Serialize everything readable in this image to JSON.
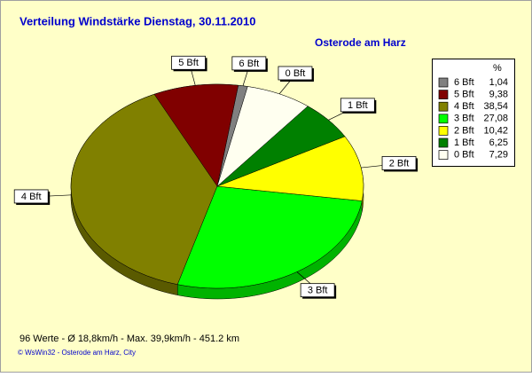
{
  "chart_data": {
    "type": "pie",
    "title": "Verteilung Windstärke  Dienstag, 30.11.2010",
    "subtitle": "Osterode am Harz",
    "legend_header": "%",
    "categories": [
      "6 Bft",
      "5 Bft",
      "4 Bft",
      "3 Bft",
      "2 Bft",
      "1 Bft",
      "0 Bft"
    ],
    "values": [
      1.04,
      9.38,
      38.54,
      27.08,
      10.42,
      6.25,
      7.29
    ],
    "value_labels": [
      "1,04",
      "9,38",
      "38,54",
      "27,08",
      "10,42",
      "6,25",
      "7,29"
    ],
    "colors": [
      "#808080",
      "#800000",
      "#808000",
      "#00ff00",
      "#ffff00",
      "#008000",
      "#fffff0"
    ],
    "legend": "right",
    "footer": "96 Werte   -   Ø 18,8km/h  -  Max. 39,9km/h  -   451.2 km",
    "credit": "© WsWin32  -  Osterode am Harz, City"
  }
}
